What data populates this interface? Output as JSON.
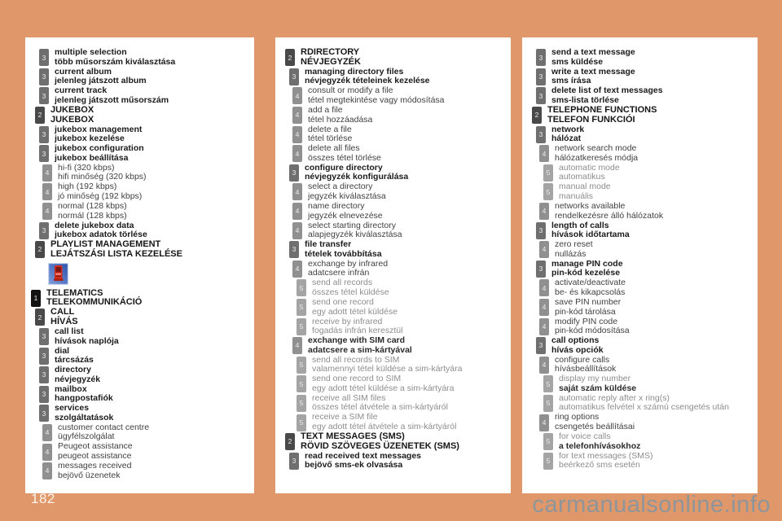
{
  "page": {
    "number": "182",
    "watermark": "carmanualsonline.info"
  },
  "colors": {
    "background": "#e0986b",
    "panel": "#ffffff",
    "level_box_colors": [
      "#121212",
      "#494949",
      "#6f6f6f",
      "#909090",
      "#a4a4a4"
    ],
    "watermark_text": "#8e959b"
  },
  "icons": {
    "telematics_icon": "blue-square-red-mobile-phone"
  },
  "columns": [
    {
      "name": "audio-jukebox-telematics",
      "items": [
        {
          "level": 3,
          "en": "multiple selection",
          "hu": "több műsorszám kiválasztása"
        },
        {
          "level": 3,
          "en": "current album",
          "hu": "jelenleg játszott album"
        },
        {
          "level": 3,
          "en": "current track",
          "hu": "jelenleg játszott műsorszám"
        },
        {
          "level": 2,
          "en": "JUKEBOX",
          "hu": "JUKEBOX"
        },
        {
          "level": 3,
          "en": "jukebox management",
          "hu": "jukebox kezelése"
        },
        {
          "level": 3,
          "en": "jukebox configuration",
          "hu": "jukebox beállítása"
        },
        {
          "level": 4,
          "en": "hi-fi (320 kbps)",
          "hu": "hifi minőség (320 kbps)"
        },
        {
          "level": 4,
          "en": "high (192 kbps)",
          "hu": "jó minőség (192 kbps)"
        },
        {
          "level": 4,
          "en": "normal (128 kbps)",
          "hu": "normál (128 kbps)"
        },
        {
          "level": 3,
          "en": "delete jukebox data",
          "hu": "jukebox adatok törlése"
        },
        {
          "level": 2,
          "en": "PLAYLIST MANAGEMENT",
          "hu": "LEJÁTSZÁSI LISTA KEZELÉSE"
        },
        {
          "icon": "telematics"
        },
        {
          "level": 1,
          "en": "TELEMATICS",
          "hu": "TELEKOMMUNIKÁCIÓ"
        },
        {
          "level": 2,
          "en": "CALL",
          "hu": "HÍVÁS"
        },
        {
          "level": 3,
          "en": "call list",
          "hu": "hívások naplója"
        },
        {
          "level": 3,
          "en": "dial",
          "hu": "tárcsázás"
        },
        {
          "level": 3,
          "en": "directory",
          "hu": "névjegyzék"
        },
        {
          "level": 3,
          "en": "mailbox",
          "hu": "hangpostafiók"
        },
        {
          "level": 3,
          "en": "services",
          "hu": "szolgáltatások"
        },
        {
          "level": 4,
          "en": "customer contact centre",
          "hu": "ügyfélszolgálat"
        },
        {
          "level": 4,
          "en": "Peugeot assistance",
          "hu": "peugeot assistance"
        },
        {
          "level": 4,
          "en": "messages received",
          "hu": "bejövő üzenetek"
        }
      ]
    },
    {
      "name": "directory-sms",
      "items": [
        {
          "level": 2,
          "en": "RDIRECTORY",
          "hu": "NÉVJEGYZÉK"
        },
        {
          "level": 3,
          "en": "managing directory files",
          "hu": "névjegyzék tételeinek kezelése"
        },
        {
          "level": 4,
          "en": "consult or modify a file",
          "hu": "tétel megtekintése vagy módosítása"
        },
        {
          "level": 4,
          "en": "add a file",
          "hu": "tétel hozzáadása"
        },
        {
          "level": 4,
          "en": "delete a file",
          "hu": "tétel törlése"
        },
        {
          "level": 4,
          "en": "delete all files",
          "hu": "összes tétel törlése"
        },
        {
          "level": 3,
          "en": "configure directory",
          "hu": "névjegyzék konfigurálása"
        },
        {
          "level": 4,
          "en": "select a directory",
          "hu": "jegyzék kiválasztása"
        },
        {
          "level": 4,
          "en": "name directory",
          "hu": "jegyzék elnevezése"
        },
        {
          "level": 4,
          "en": "select starting directory",
          "hu": "alapjegyzék kiválasztása"
        },
        {
          "level": 3,
          "en": "file transfer",
          "hu": "tételek továbbítása"
        },
        {
          "level": 4,
          "en": "exchange by infrared",
          "hu": "adatcsere infrán"
        },
        {
          "level": 5,
          "en": "send all records",
          "hu": "összes tétel küldése"
        },
        {
          "level": 5,
          "en": "send one record",
          "hu": "egy adott tétel küldése"
        },
        {
          "level": 5,
          "en": "receive by infrared",
          "hu": "fogadás infrán keresztül"
        },
        {
          "level": 4,
          "en": "exchange with SIM card",
          "hu": "adatcsere a sim-kártyával",
          "bold": true
        },
        {
          "level": 5,
          "en": "send all records to SIM",
          "hu": "valamennyi tétel küldése a sim-kártyára"
        },
        {
          "level": 5,
          "en": "send one record to SIM",
          "hu": "egy adott tétel küldése a sim-kártyára"
        },
        {
          "level": 5,
          "en": "receive all SIM files",
          "hu": "összes tétel átvétele a sim-kártyáról"
        },
        {
          "level": 5,
          "en": "receive a SIM file",
          "hu": "egy adott tétel átvétele a sim-kártyáról"
        },
        {
          "level": 2,
          "en": "TEXT MESSAGES (SMS)",
          "hu": "RÖVID SZÖVEGES ÜZENETEK (SMS)"
        },
        {
          "level": 3,
          "en": "read received text messages",
          "hu": "bejövő sms-ek olvasása"
        }
      ]
    },
    {
      "name": "sms-telephone-functions",
      "items": [
        {
          "level": 3,
          "en": "send a text message",
          "hu": "sms küldése"
        },
        {
          "level": 3,
          "en": "write a text message",
          "hu": "sms írása"
        },
        {
          "level": 3,
          "en": "delete list of text messages",
          "hu": "sms-lista törlése"
        },
        {
          "level": 2,
          "en": "TELEPHONE FUNCTIONS",
          "hu": "TELEFON FUNKCIÓI"
        },
        {
          "level": 3,
          "en": "network",
          "hu": "hálózat"
        },
        {
          "level": 4,
          "en": "network search mode",
          "hu": "hálózatkeresés módja"
        },
        {
          "level": 5,
          "en": "automatic mode",
          "hu": "automatikus"
        },
        {
          "level": 5,
          "en": "manual mode",
          "hu": "manuális"
        },
        {
          "level": 4,
          "en": "networks available",
          "hu": "rendelkezésre álló hálózatok"
        },
        {
          "level": 3,
          "en": "length of calls",
          "hu": "hívások időtartama"
        },
        {
          "level": 4,
          "en": "zero reset",
          "hu": "nullázás"
        },
        {
          "level": 3,
          "en": "manage PIN code",
          "hu": "pin-kód kezelése"
        },
        {
          "level": 4,
          "en": "activate/deactivate",
          "hu": "be- és kikapcsolás"
        },
        {
          "level": 4,
          "en": "save PIN number",
          "hu": "pin-kód tárolása"
        },
        {
          "level": 4,
          "en": "modify PIN code",
          "hu": "pin-kód módosítása"
        },
        {
          "level": 3,
          "en": "call options",
          "hu": "hívás opciók"
        },
        {
          "level": 4,
          "en": "configure calls",
          "hu": "hívásbeállítások"
        },
        {
          "level": 5,
          "en": "display my number",
          "hu": "saját szám küldése",
          "hu_bold": true
        },
        {
          "level": 5,
          "en": "automatic reply after x ring(s)",
          "hu": "automatikus felvétel x számú csengetés után"
        },
        {
          "level": 4,
          "en": "ring options",
          "hu": "csengetés beállításai"
        },
        {
          "level": 5,
          "en": "for voice calls",
          "hu": "a telefonhívásokhoz",
          "hu_bold": true
        },
        {
          "level": 5,
          "en": "for text messages (SMS)",
          "hu": "beérkező sms esetén"
        }
      ]
    }
  ]
}
